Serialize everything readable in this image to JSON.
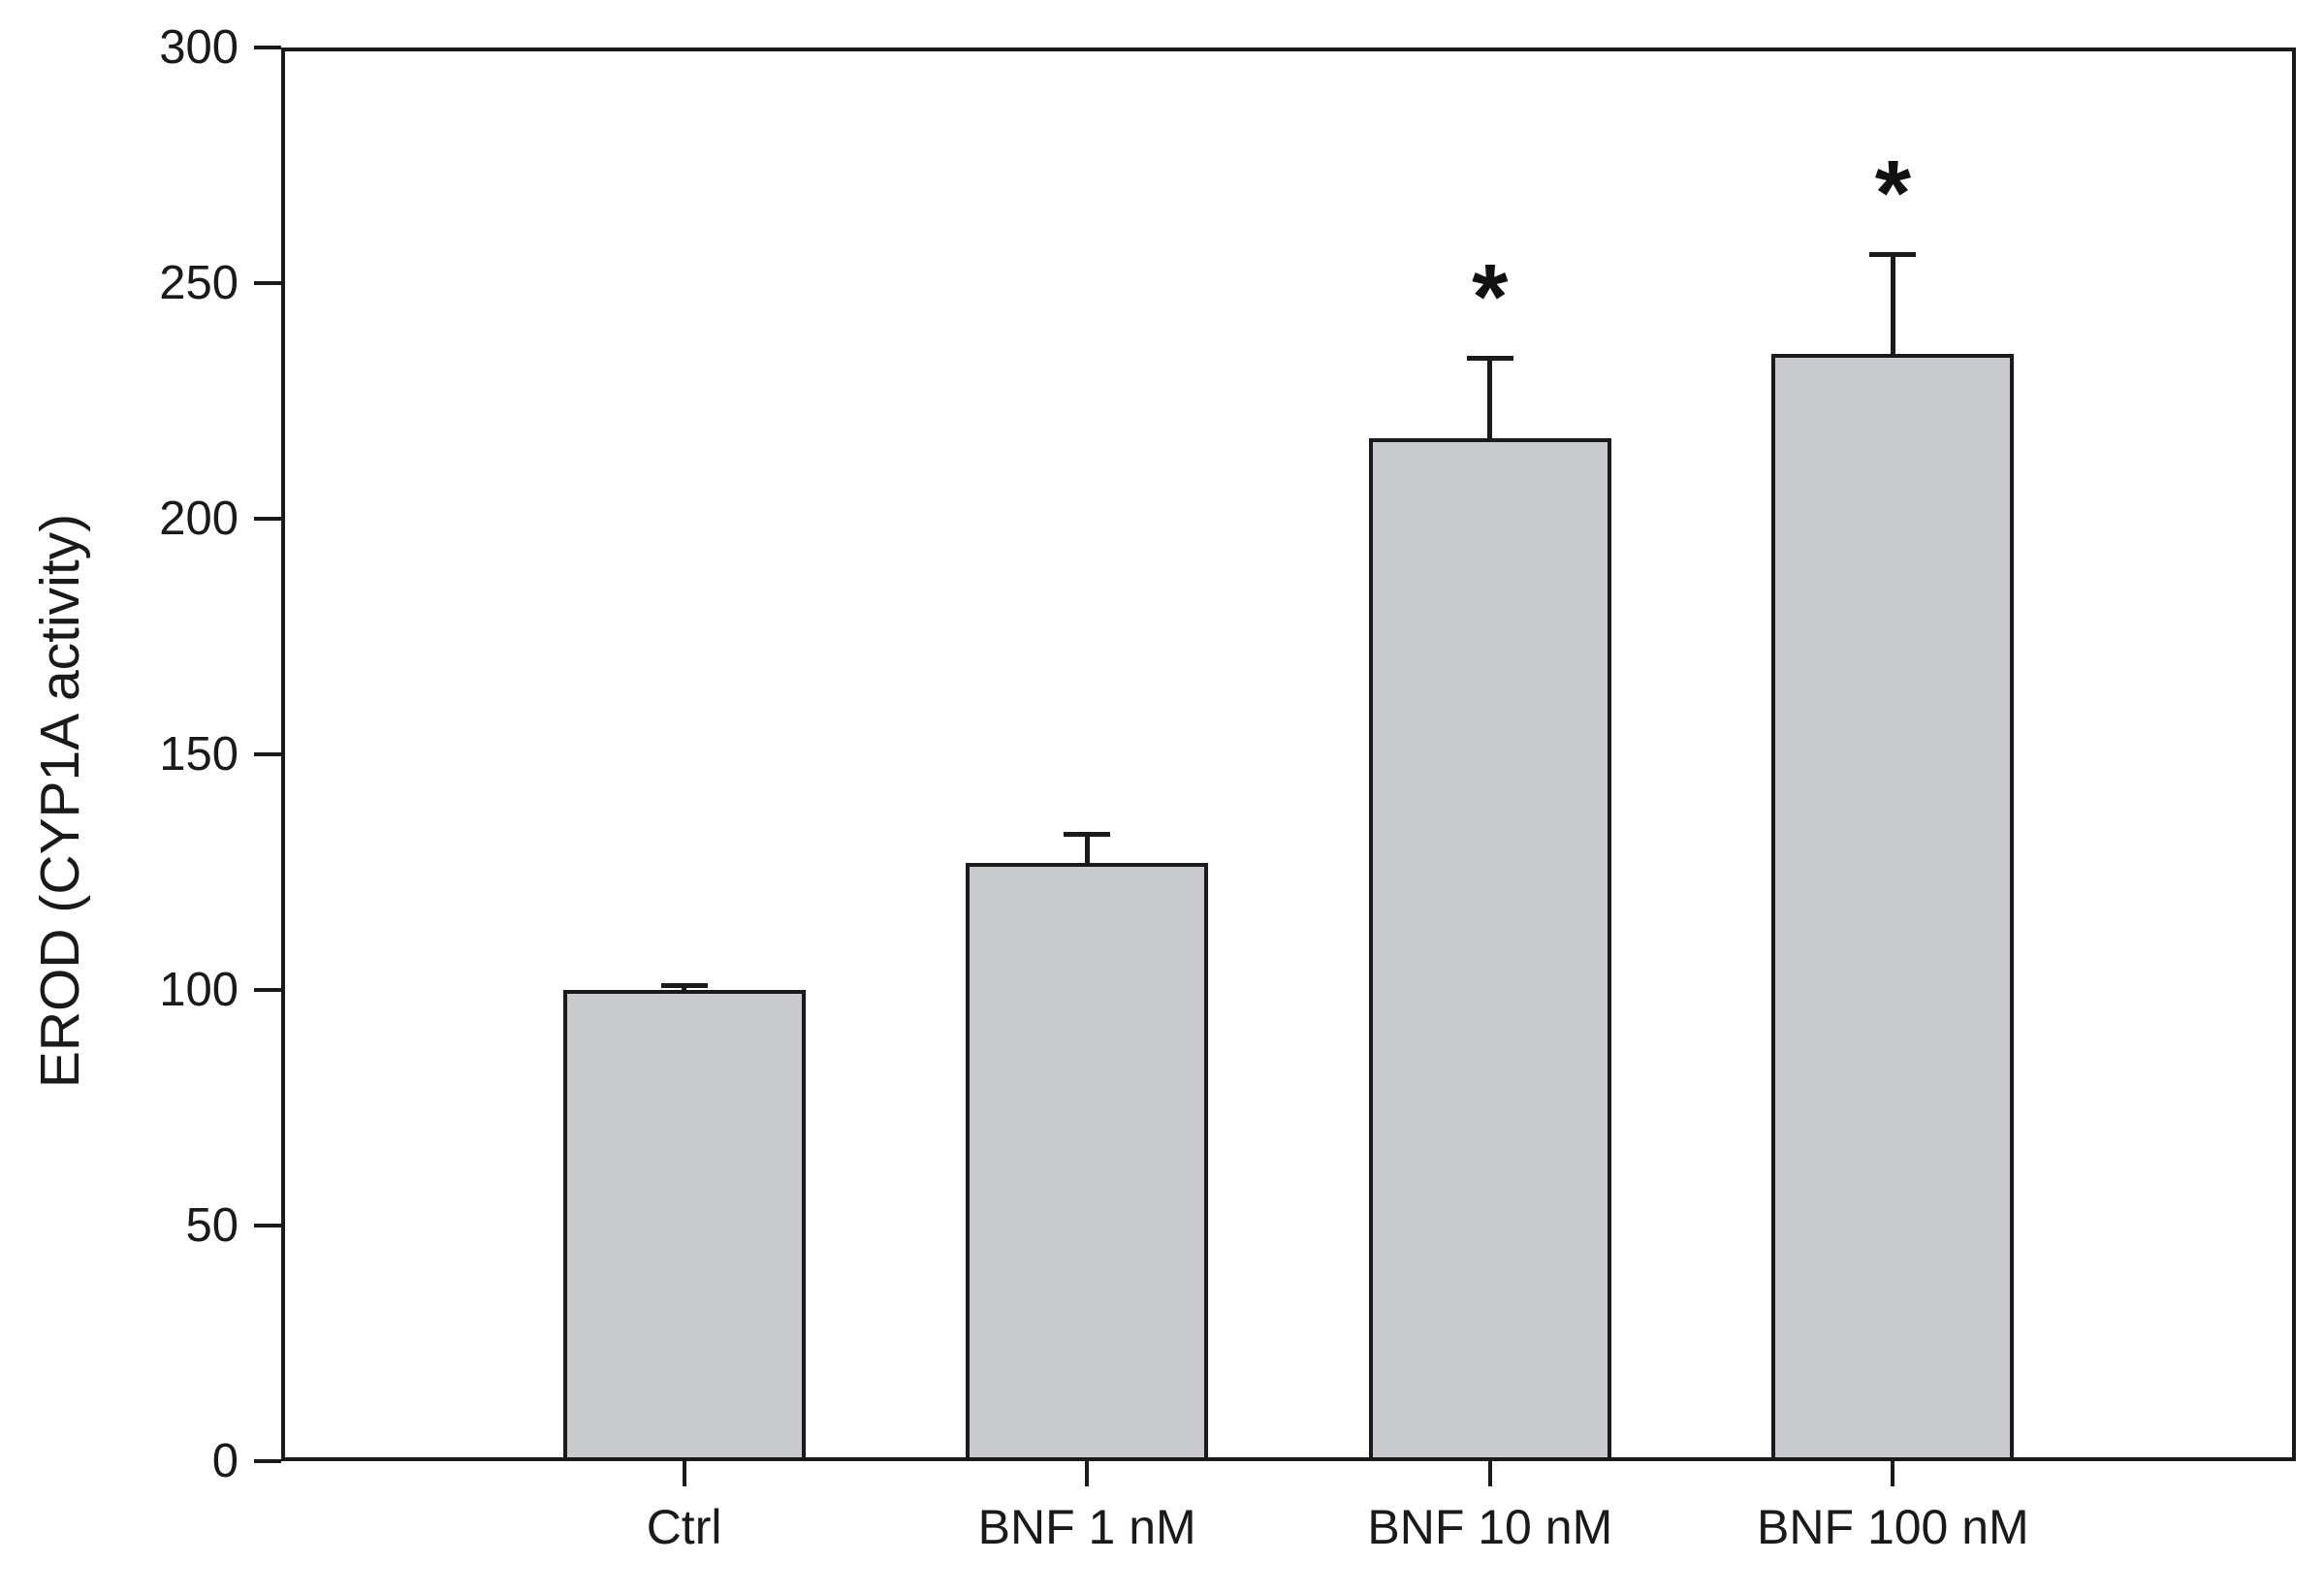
{
  "figure": {
    "background_color": "#ffffff",
    "line_color": "#1a1a1a",
    "bar_fill_color": "#c9cacd"
  },
  "chart_data": {
    "type": "bar",
    "title": "",
    "xlabel": "",
    "ylabel": "EROD (CYP1A activity)",
    "categories": [
      "Ctrl",
      "BNF 1 nM",
      "BNF 10 nM",
      "BNF 100 nM"
    ],
    "values": [
      100,
      127,
      217,
      235
    ],
    "error_plus": [
      1,
      6,
      17,
      21
    ],
    "significance": [
      "",
      "",
      "*",
      "*"
    ],
    "ylim": [
      0,
      300
    ],
    "yticks": [
      0,
      50,
      100,
      150,
      200,
      250,
      300
    ],
    "grid": false,
    "legend": null,
    "frame": "full box, ticks outward",
    "error_bar_style": "upper only, capped"
  }
}
